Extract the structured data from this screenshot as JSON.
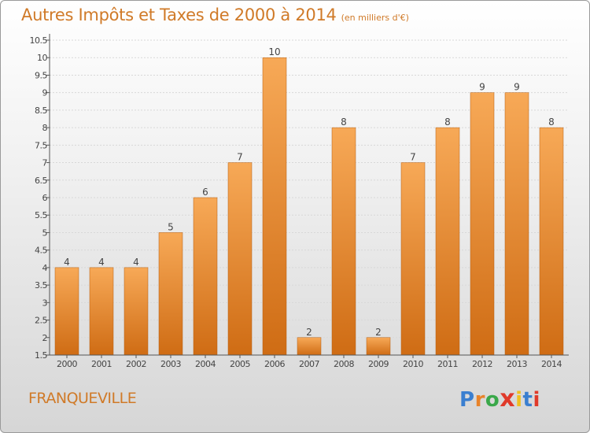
{
  "title": "Autres Impôts et Taxes de 2000 à 2014",
  "unit": "(en milliers d'€)",
  "location": "FRANQUEVILLE",
  "logo": {
    "text": "Proxiti",
    "letter_colors": [
      "#3a7fd0",
      "#e8832a",
      "#3aa84a",
      "#e03a2a",
      "#f0c020",
      "#3a7fd0",
      "#e03a2a"
    ]
  },
  "chart_data": {
    "type": "bar",
    "title": "Autres Impôts et Taxes de 2000 à 2014",
    "subtitle": "(en milliers d'€)",
    "categories": [
      "2000",
      "2001",
      "2002",
      "2003",
      "2004",
      "2005",
      "2006",
      "2007",
      "2008",
      "2009",
      "2010",
      "2011",
      "2012",
      "2013",
      "2014"
    ],
    "values": [
      4,
      4,
      4,
      5,
      6,
      7,
      10,
      2,
      8,
      2,
      7,
      8,
      9,
      9,
      8
    ],
    "data_labels": [
      "4",
      "4",
      "4",
      "5",
      "6",
      "7",
      "10",
      "2",
      "8",
      "2",
      "7",
      "8",
      "9",
      "9",
      "8"
    ],
    "ylim": [
      1.5,
      10.5
    ],
    "yticks": [
      "1.5",
      "2",
      "2.5",
      "3",
      "3.5",
      "4",
      "4.5",
      "5",
      "5.5",
      "6",
      "6.5",
      "7",
      "7.5",
      "8",
      "8.5",
      "9",
      "9.5",
      "10",
      "10.5"
    ],
    "xlabel": "",
    "ylabel": "",
    "grid": true,
    "legend": "none",
    "colors": {
      "bar_light": "#f7a957",
      "bar_dark": "#cf6c14",
      "axis": "#555555",
      "label": "#444444"
    }
  }
}
